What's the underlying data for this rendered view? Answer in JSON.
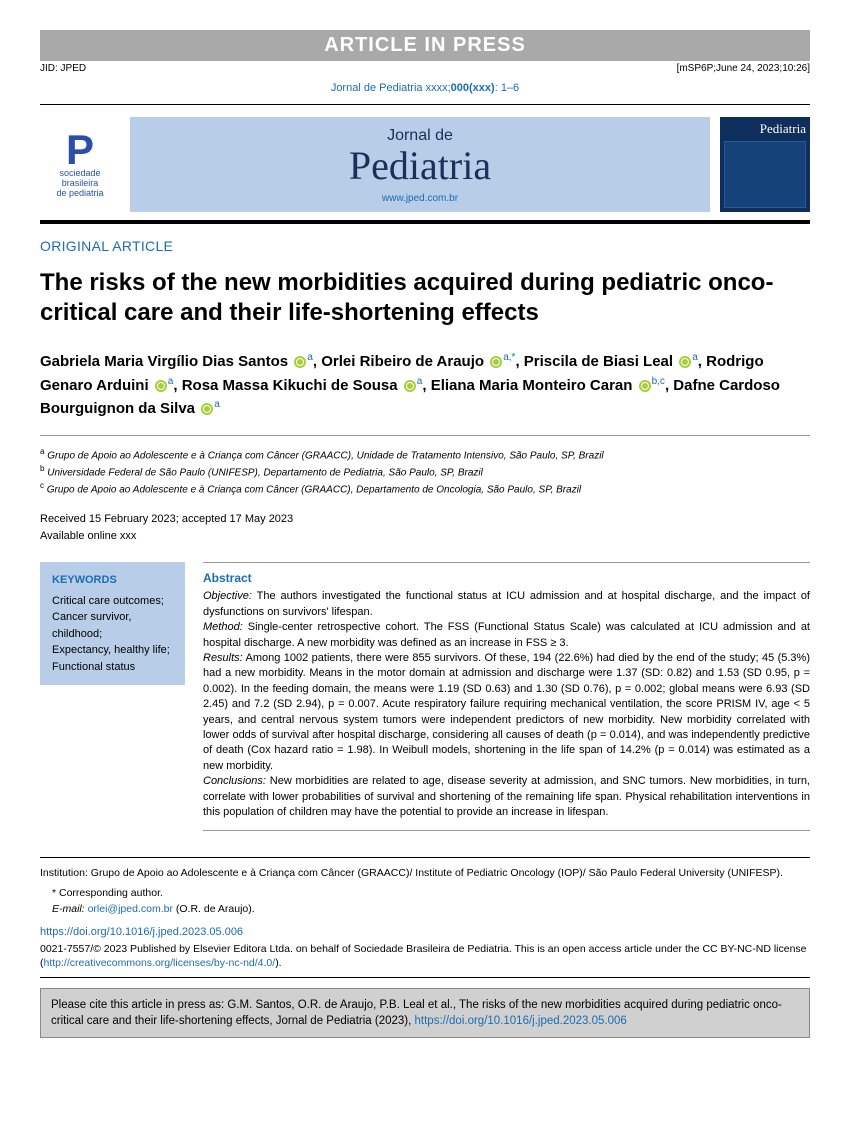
{
  "press_banner": "ARTICLE IN PRESS",
  "meta": {
    "jid": "JID: JPED",
    "stamp": "[mSP6P;June 24, 2023;10:26]"
  },
  "journal_ref": {
    "prefix": "Jornal de Pediatria xxxx;",
    "issue": "000(xxx)",
    "pages": ": 1–6"
  },
  "society": {
    "letter": "P",
    "line1": "sociedade",
    "line2": "brasileira",
    "line3": "de pediatria"
  },
  "banner": {
    "top": "Jornal de",
    "main": "Pediatria",
    "url": "www.jped.com.br"
  },
  "cover": {
    "title": "Pediatria"
  },
  "article_type": "ORIGINAL ARTICLE",
  "title": "The risks of the new morbidities acquired during pediatric onco-critical care and their life-shortening effects",
  "authors": [
    {
      "name": "Gabriela Maria Virgílio Dias Santos",
      "aff": "a",
      "corr": false
    },
    {
      "name": "Orlei Ribeiro de Araujo",
      "aff": "a",
      "corr": true
    },
    {
      "name": "Priscila de Biasi Leal",
      "aff": "a",
      "corr": false
    },
    {
      "name": "Rodrigo Genaro Arduini",
      "aff": "a",
      "corr": false
    },
    {
      "name": "Rosa Massa Kikuchi de Sousa",
      "aff": "a",
      "corr": false
    },
    {
      "name": "Eliana Maria Monteiro Caran",
      "aff": "b,c",
      "corr": false
    },
    {
      "name": "Dafne Cardoso Bourguignon da Silva",
      "aff": "a",
      "corr": false
    }
  ],
  "affiliations": {
    "a": "Grupo de Apoio ao Adolescente e à Criança com Câncer (GRAACC), Unidade de Tratamento Intensivo, São Paulo, SP, Brazil",
    "b": "Universidade Federal de São Paulo (UNIFESP), Departamento de Pediatria, São Paulo, SP, Brazil",
    "c": "Grupo de Apoio ao Adolescente e à Criança com Câncer (GRAACC), Departamento de Oncologia, São Paulo, SP, Brazil"
  },
  "dates": {
    "received_accepted": "Received 15 February 2023; accepted 17 May 2023",
    "online": "Available online xxx"
  },
  "keywords": {
    "title": "KEYWORDS",
    "items": "Critical care outcomes;\nCancer survivor, childhood;\nExpectancy, healthy life;\nFunctional status"
  },
  "abstract": {
    "title": "Abstract",
    "objective_label": "Objective:",
    "objective": " The authors investigated the functional status at ICU admission and at hospital discharge, and the impact of dysfunctions on survivors' lifespan.",
    "method_label": "Method:",
    "method": " Single-center retrospective cohort. The FSS (Functional Status Scale) was calculated at ICU admission and at hospital discharge. A new morbidity was defined as an increase in FSS ≥ 3.",
    "results_label": "Results:",
    "results": " Among 1002 patients, there were 855 survivors. Of these, 194 (22.6%) had died by the end of the study; 45 (5.3%) had a new morbidity. Means in the motor domain at admission and discharge were 1.37 (SD: 0.82) and 1.53 (SD 0.95, p = 0.002). In the feeding domain, the means were 1.19 (SD 0.63) and 1.30 (SD 0.76), p = 0.002; global means were 6.93 (SD 2.45) and 7.2 (SD 2.94), p = 0.007. Acute respiratory failure requiring mechanical ventilation, the score PRISM IV, age < 5 years, and central nervous system tumors were independent predictors of new morbidity. New morbidity correlated with lower odds of survival after hospital discharge, considering all causes of death (p = 0.014), and was independently predictive of death (Cox hazard ratio = 1.98). In Weibull models, shortening in the life span of 14.2% (p = 0.014) was estimated as a new morbidity.",
    "conclusions_label": "Conclusions:",
    "conclusions": " New morbidities are related to age, disease severity at admission, and SNC tumors. New morbidities, in turn, correlate with lower probabilities of survival and shortening of the remaining life span. Physical rehabilitation interventions in this population of children may have the potential to provide an increase in lifespan."
  },
  "footer": {
    "institution": "Institution: Grupo de Apoio ao Adolescente e à Criança com Câncer (GRAACC)/ Institute of Pediatric Oncology (IOP)/ São Paulo Federal University (UNIFESP).",
    "corr_label": "* Corresponding author.",
    "email_label": "E-mail:",
    "email": "orlei@jped.com.br",
    "email_suffix": " (O.R. de Araujo).",
    "doi": "https://doi.org/10.1016/j.jped.2023.05.006",
    "copyright": "0021-7557/© 2023 Published by Elsevier Editora Ltda. on behalf of Sociedade Brasileira de Pediatria. This is an open access article under the CC BY-NC-ND license (",
    "cc_url": "http://creativecommons.org/licenses/by-nc-nd/4.0/",
    "copyright_close": ")."
  },
  "citebox": {
    "text": "Please cite this article in press as: G.M. Santos, O.R. de Araujo, P.B. Leal et al., The risks of the new morbidities acquired during pediatric onco-critical care and their life-shortening effects, Jornal de Pediatria (2023), ",
    "url": "https://doi.org/10.1016/j.jped.2023.05.006"
  },
  "colors": {
    "banner_bg": "#b8cde8",
    "link": "#1a6db3",
    "orcid": "#a6ce39",
    "citebox_bg": "#d0d0d0"
  }
}
